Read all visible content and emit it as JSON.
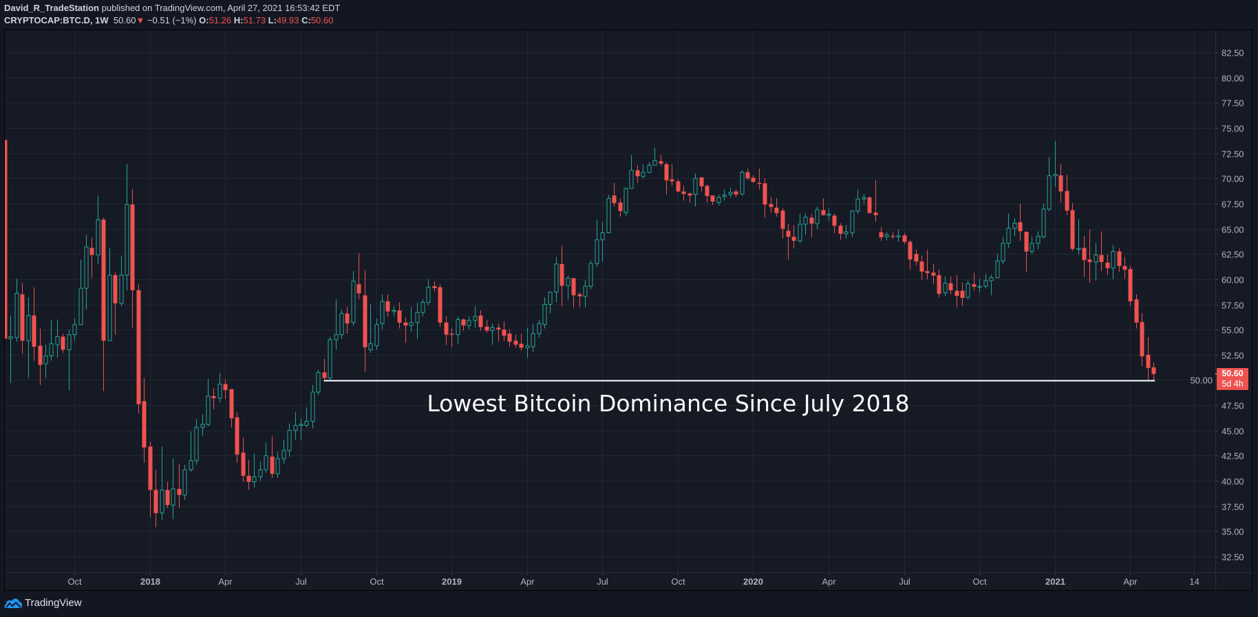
{
  "header": {
    "author": "David_R_TradeStation",
    "published_text": "published on TradingView.com, April 27, 2021 16:53:42 EDT",
    "symbol": "CRYPTOCAP:BTC.D, 1W",
    "last": "50.60",
    "change": "−0.51 (−1%)",
    "o_label": "O:",
    "o": "51.26",
    "h_label": "H:",
    "h": "51.73",
    "l_label": "L:",
    "l": "49.93",
    "c_label": "C:",
    "c": "50.60",
    "down_icon": "triangle-down-icon"
  },
  "price_tag": {
    "price": "50.60",
    "countdown": "5d 4h",
    "value": 50.6
  },
  "annotation": {
    "text": "Lowest Bitcoin Dominance Since July 2018"
  },
  "logo": {
    "text": "TradingView"
  },
  "colors": {
    "up": "#26a69a",
    "down": "#ef5350",
    "line": "#ffffff",
    "grid": "#232733",
    "background": "#161a25"
  },
  "chart_data": {
    "type": "candlestick",
    "symbol": "CRYPTOCAP:BTC.D",
    "interval": "1W",
    "last_bar_date": "2021-04-26",
    "ylim": [
      31.5,
      83.5
    ],
    "y_ticks": [
      "82.50",
      "80.00",
      "77.50",
      "75.00",
      "72.50",
      "70.00",
      "67.50",
      "65.00",
      "62.50",
      "60.00",
      "57.50",
      "55.00",
      "52.50",
      "50.00",
      "47.50",
      "45.00",
      "42.50",
      "40.00",
      "37.50",
      "35.00",
      "32.50"
    ],
    "x_ticks": [
      {
        "label": "Oct",
        "date": "2017-10-02"
      },
      {
        "label": "2018",
        "date": "2018-01-01"
      },
      {
        "label": "Apr",
        "date": "2018-04-02"
      },
      {
        "label": "Jul",
        "date": "2018-07-02"
      },
      {
        "label": "Oct",
        "date": "2018-10-01"
      },
      {
        "label": "2019",
        "date": "2018-12-31"
      },
      {
        "label": "Apr",
        "date": "2019-04-01"
      },
      {
        "label": "Jul",
        "date": "2019-07-01"
      },
      {
        "label": "Oct",
        "date": "2019-09-30"
      },
      {
        "label": "2020",
        "date": "2019-12-30"
      },
      {
        "label": "Apr",
        "date": "2020-03-30"
      },
      {
        "label": "Jul",
        "date": "2020-06-29"
      },
      {
        "label": "Oct",
        "date": "2020-09-28"
      },
      {
        "label": "2021",
        "date": "2020-12-28"
      },
      {
        "label": "Apr",
        "date": "2021-03-29"
      },
      {
        "label": "14",
        "date": "2021-06-14"
      }
    ],
    "support_line": {
      "value": 49.93,
      "from_bar": 56,
      "to_bar": 199
    },
    "ohlc": [
      [
        73.8,
        73.8,
        54.1,
        54.1
      ],
      [
        54.1,
        56.4,
        49.7,
        54.3
      ],
      [
        54.2,
        60.05,
        53.8,
        58.6
      ],
      [
        58.5,
        59.6,
        52.6,
        53.9
      ],
      [
        53.9,
        58.2,
        50.2,
        56.4
      ],
      [
        56.4,
        59.2,
        51.9,
        53.3
      ],
      [
        53.4,
        55.1,
        49.5,
        51.5
      ],
      [
        51.6,
        53.5,
        50.2,
        52.4
      ],
      [
        52.4,
        56,
        51.9,
        53.6
      ],
      [
        53.5,
        56,
        52.2,
        54.3
      ],
      [
        54.3,
        54.6,
        52.7,
        53.0
      ],
      [
        53.0,
        55,
        49.0,
        54.5
      ],
      [
        54.5,
        56.1,
        53.9,
        55.5
      ],
      [
        55.5,
        61.95,
        55.5,
        59.1
      ],
      [
        59.1,
        64.4,
        57.0,
        63.2
      ],
      [
        63.1,
        64.1,
        60.1,
        62.4
      ],
      [
        62.4,
        68.3,
        61.5,
        65.9
      ],
      [
        65.9,
        66.1,
        48.9,
        53.9
      ],
      [
        53.9,
        63.1,
        53.9,
        60.4
      ],
      [
        60.4,
        60.7,
        54.5,
        57.6
      ],
      [
        57.6,
        62.3,
        57.3,
        60.4
      ],
      [
        60.4,
        71.4,
        58.9,
        67.4
      ],
      [
        67.4,
        68.9,
        55.2,
        58.9
      ],
      [
        58.9,
        59.5,
        46.7,
        47.6
      ],
      [
        47.9,
        50.2,
        41.8,
        43.3
      ],
      [
        43.4,
        43.9,
        36.4,
        39.1
      ],
      [
        39.1,
        41.1,
        35.4,
        36.8
      ],
      [
        36.8,
        43.4,
        36.1,
        39.1
      ],
      [
        39.1,
        39.9,
        37.3,
        37.6
      ],
      [
        37.6,
        42.2,
        36.2,
        39.2
      ],
      [
        39.2,
        41.7,
        37.3,
        38.6
      ],
      [
        38.6,
        41.6,
        38.1,
        41.1
      ],
      [
        41.1,
        44.9,
        40.9,
        42.0
      ],
      [
        42.0,
        46.1,
        41.6,
        45.3
      ],
      [
        45.3,
        46.6,
        44.5,
        45.6
      ],
      [
        45.6,
        50.1,
        45.4,
        48.4
      ],
      [
        48.4,
        49.2,
        47.1,
        48.2
      ],
      [
        48.2,
        50.7,
        47.8,
        49.6
      ],
      [
        49.6,
        50.1,
        48.1,
        49.0
      ],
      [
        49.1,
        49.1,
        45.3,
        46.2
      ],
      [
        46.3,
        46.8,
        41.8,
        42.6
      ],
      [
        42.8,
        44.3,
        39.9,
        40.5
      ],
      [
        40.5,
        42.1,
        39.1,
        39.9
      ],
      [
        39.9,
        42.7,
        39.3,
        40.4
      ],
      [
        40.4,
        41.9,
        40.0,
        41.1
      ],
      [
        41.1,
        43.8,
        40.8,
        42.5
      ],
      [
        42.4,
        44.4,
        40.3,
        40.7
      ],
      [
        40.7,
        42.9,
        40.3,
        42.2
      ],
      [
        42.2,
        44.1,
        41.7,
        43.0
      ],
      [
        43.0,
        45.7,
        42.4,
        45.0
      ],
      [
        45.0,
        46.8,
        44.1,
        45.5
      ],
      [
        45.5,
        46.2,
        44.0,
        45.6
      ],
      [
        45.5,
        47.3,
        45.3,
        45.9
      ],
      [
        45.9,
        49.5,
        45.2,
        48.8
      ],
      [
        48.8,
        51.0,
        48.5,
        50.75
      ],
      [
        50.75,
        52.1,
        50.0,
        50.2
      ],
      [
        50.2,
        54.3,
        50.0,
        54.0
      ],
      [
        54.0,
        58.0,
        53.0,
        54.5
      ],
      [
        54.5,
        57.0,
        54.1,
        56.6
      ],
      [
        56.6,
        57.25,
        54.6,
        55.6
      ],
      [
        55.7,
        60.8,
        55.4,
        59.8
      ],
      [
        59.5,
        62.6,
        58.0,
        58.6
      ],
      [
        58.4,
        60.9,
        50.8,
        53.25
      ],
      [
        53.0,
        57.5,
        52.7,
        53.6
      ],
      [
        53.4,
        56.1,
        53.0,
        55.5
      ],
      [
        55.6,
        58.5,
        55.0,
        57.8
      ],
      [
        57.8,
        58.5,
        56.3,
        56.8
      ],
      [
        56.85,
        57.3,
        56.3,
        56.9
      ],
      [
        56.9,
        57.7,
        55.1,
        55.7
      ],
      [
        55.7,
        56.2,
        53.7,
        55.4
      ],
      [
        55.4,
        57.25,
        54.8,
        55.7
      ],
      [
        55.7,
        57.7,
        54.1,
        56.7
      ],
      [
        56.7,
        58.0,
        56.3,
        57.7
      ],
      [
        57.7,
        60.0,
        57.4,
        59.2
      ],
      [
        59.3,
        59.8,
        58.8,
        59.1
      ],
      [
        59.2,
        59.5,
        55.3,
        55.7
      ],
      [
        55.7,
        56.3,
        53.45,
        54.5
      ],
      [
        54.6,
        55.1,
        53.25,
        54.5
      ],
      [
        54.5,
        56.3,
        53.6,
        56.0
      ],
      [
        56.0,
        56.1,
        54.9,
        55.4
      ],
      [
        55.4,
        56.3,
        55.0,
        55.9
      ],
      [
        55.9,
        57.35,
        55.2,
        56.3
      ],
      [
        56.4,
        56.9,
        54.9,
        55.25
      ],
      [
        55.3,
        55.95,
        54.7,
        54.9
      ],
      [
        54.9,
        55.6,
        53.5,
        55.2
      ],
      [
        55.2,
        55.6,
        53.8,
        55.0
      ],
      [
        55.0,
        55.8,
        53.9,
        54.4
      ],
      [
        54.6,
        55.0,
        53.3,
        53.8
      ],
      [
        53.9,
        54.5,
        53.2,
        53.5
      ],
      [
        53.6,
        54.6,
        52.9,
        53.2
      ],
      [
        53.2,
        55.2,
        52.2,
        53.4
      ],
      [
        53.3,
        55.6,
        52.8,
        54.6
      ],
      [
        54.6,
        56.0,
        54.2,
        55.6
      ],
      [
        55.5,
        58.2,
        55.1,
        57.5
      ],
      [
        57.5,
        58.8,
        56.6,
        58.7
      ],
      [
        58.7,
        62.2,
        57.7,
        61.5
      ],
      [
        61.5,
        63.3,
        57.3,
        59.35
      ],
      [
        59.35,
        60.35,
        58.0,
        60.1
      ],
      [
        60.1,
        60.1,
        57.2,
        58.4
      ],
      [
        58.5,
        58.7,
        57.2,
        58.3
      ],
      [
        58.3,
        59.9,
        57.2,
        59.3
      ],
      [
        59.3,
        61.85,
        59.0,
        61.55
      ],
      [
        61.55,
        65.9,
        61.25,
        63.9
      ],
      [
        63.9,
        65.7,
        61.7,
        64.6
      ],
      [
        64.6,
        68.4,
        64.6,
        68.0
      ],
      [
        68.3,
        69.55,
        67.2,
        67.55
      ],
      [
        67.6,
        68.0,
        66.2,
        66.75
      ],
      [
        66.6,
        69.05,
        66.3,
        69.0
      ],
      [
        69.0,
        72.3,
        69.0,
        70.8
      ],
      [
        70.8,
        71.3,
        69.55,
        70.2
      ],
      [
        70.2,
        71.4,
        70.0,
        70.6
      ],
      [
        70.6,
        71.6,
        70.5,
        71.3
      ],
      [
        71.3,
        73.05,
        71.3,
        71.75
      ],
      [
        71.7,
        72.3,
        71.2,
        71.45
      ],
      [
        71.4,
        71.6,
        68.4,
        69.8
      ],
      [
        69.9,
        71.4,
        69.3,
        69.7
      ],
      [
        69.7,
        69.9,
        68.6,
        68.7
      ],
      [
        68.7,
        69.25,
        67.8,
        68.45
      ],
      [
        68.5,
        68.6,
        67.6,
        68.3
      ],
      [
        68.4,
        70.5,
        67.2,
        70.0
      ],
      [
        70.1,
        70.1,
        68.7,
        69.2
      ],
      [
        69.25,
        69.4,
        67.6,
        68.25
      ],
      [
        68.3,
        68.3,
        67.35,
        67.7
      ],
      [
        67.6,
        68.4,
        67.3,
        68.1
      ],
      [
        68.2,
        68.9,
        67.8,
        68.35
      ],
      [
        68.4,
        69.05,
        68.1,
        68.6
      ],
      [
        68.7,
        68.9,
        68.15,
        68.4
      ],
      [
        68.45,
        70.8,
        68.25,
        70.6
      ],
      [
        70.6,
        70.95,
        69.85,
        70.0
      ],
      [
        70.05,
        70.3,
        69.55,
        69.65
      ],
      [
        69.55,
        70.95,
        68.9,
        69.5
      ],
      [
        69.5,
        70.0,
        66.1,
        67.4
      ],
      [
        67.45,
        68.15,
        66.6,
        67.15
      ],
      [
        67.1,
        68.05,
        66.2,
        66.55
      ],
      [
        66.8,
        67.05,
        64.05,
        65.0
      ],
      [
        64.8,
        65.5,
        61.95,
        64.2
      ],
      [
        64.2,
        65.35,
        63.05,
        63.8
      ],
      [
        63.8,
        66.45,
        63.6,
        65.45
      ],
      [
        65.45,
        66.5,
        64.4,
        66.15
      ],
      [
        66.1,
        66.45,
        64.15,
        65.5
      ],
      [
        65.5,
        67.2,
        64.95,
        66.9
      ],
      [
        66.85,
        68.0,
        66.3,
        66.35
      ],
      [
        66.4,
        67.0,
        65.8,
        66.45
      ],
      [
        66.3,
        66.5,
        64.55,
        65.3
      ],
      [
        65.3,
        65.55,
        63.9,
        64.5
      ],
      [
        64.5,
        65.35,
        64.05,
        64.7
      ],
      [
        64.6,
        66.85,
        64.2,
        66.75
      ],
      [
        66.75,
        68.9,
        66.5,
        67.95
      ],
      [
        67.95,
        68.45,
        67.4,
        68.1
      ],
      [
        68.1,
        68.2,
        66.55,
        66.55
      ],
      [
        66.6,
        69.8,
        65.7,
        66.35
      ],
      [
        64.65,
        65.15,
        63.8,
        64.15
      ],
      [
        64.2,
        64.65,
        63.85,
        64.4
      ],
      [
        64.3,
        64.65,
        64.0,
        64.2
      ],
      [
        64.25,
        64.9,
        63.7,
        64.3
      ],
      [
        64.35,
        64.55,
        63.45,
        63.7
      ],
      [
        63.7,
        63.85,
        60.95,
        61.95
      ],
      [
        62.5,
        62.95,
        61.35,
        61.75
      ],
      [
        61.75,
        62.35,
        59.95,
        60.75
      ],
      [
        60.8,
        62.9,
        60.0,
        60.6
      ],
      [
        60.65,
        61.5,
        59.5,
        60.35
      ],
      [
        60.4,
        60.95,
        58.2,
        58.55
      ],
      [
        58.65,
        60.25,
        58.3,
        59.6
      ],
      [
        59.6,
        60.3,
        58.5,
        58.9
      ],
      [
        58.85,
        60.4,
        57.2,
        58.35
      ],
      [
        58.85,
        59.65,
        57.35,
        58.15
      ],
      [
        58.2,
        59.9,
        58.0,
        59.55
      ],
      [
        59.5,
        60.65,
        58.9,
        59.25
      ],
      [
        59.25,
        60.05,
        58.7,
        59.3
      ],
      [
        59.3,
        60.5,
        59.1,
        59.85
      ],
      [
        59.85,
        60.45,
        58.4,
        60.15
      ],
      [
        60.15,
        62.5,
        60.15,
        61.8
      ],
      [
        61.8,
        64.2,
        61.5,
        63.55
      ],
      [
        63.55,
        66.5,
        63.1,
        65.05
      ],
      [
        65.05,
        66.05,
        64.25,
        65.55
      ],
      [
        65.65,
        67.5,
        63.8,
        64.75
      ],
      [
        64.7,
        64.75,
        60.75,
        62.75
      ],
      [
        62.75,
        64.2,
        62.5,
        63.55
      ],
      [
        63.55,
        64.75,
        62.95,
        64.25
      ],
      [
        64.2,
        67.5,
        64.05,
        66.95
      ],
      [
        66.95,
        72.1,
        66.75,
        70.25
      ],
      [
        70.25,
        73.7,
        69.15,
        70.4
      ],
      [
        70.3,
        71.45,
        67.6,
        68.7
      ],
      [
        68.75,
        70.35,
        66.35,
        66.8
      ],
      [
        66.85,
        67.55,
        62.8,
        63.0
      ],
      [
        63.0,
        65.95,
        62.4,
        63.05
      ],
      [
        63.1,
        64.3,
        60.2,
        61.9
      ],
      [
        61.95,
        64.9,
        59.65,
        61.7
      ],
      [
        61.7,
        63.6,
        59.85,
        62.4
      ],
      [
        62.4,
        64.75,
        60.8,
        61.7
      ],
      [
        61.65,
        62.45,
        60.4,
        61.1
      ],
      [
        61.1,
        63.4,
        60.0,
        62.75
      ],
      [
        62.75,
        63.05,
        60.75,
        61.3
      ],
      [
        61.3,
        62.2,
        60.05,
        60.95
      ],
      [
        61.0,
        61.3,
        57.35,
        57.8
      ],
      [
        58.0,
        58.5,
        55.1,
        55.7
      ],
      [
        55.75,
        56.65,
        51.35,
        52.35
      ],
      [
        52.5,
        54.25,
        49.95,
        51.2
      ],
      [
        51.26,
        51.73,
        49.93,
        50.6
      ]
    ]
  }
}
